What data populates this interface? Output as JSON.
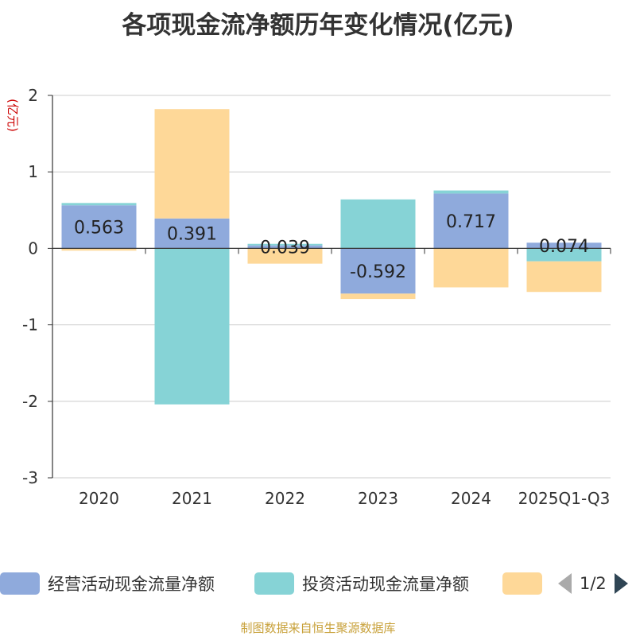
{
  "page": {
    "title": "各项现金流净额历年变化情况(亿元)",
    "footer": "制图数据来自恒生聚源数据库"
  },
  "colors": {
    "operating": "#8faadc",
    "investing": "#86d3d6",
    "financing": "#fed898",
    "grid": "#cccccc",
    "axis": "#333333",
    "unit": "#cc0000"
  },
  "legend": {
    "items": [
      "经营活动现金流量净额",
      "投资活动现金流量净额",
      ""
    ],
    "page": "1/2"
  },
  "chart_data": {
    "type": "bar",
    "stacked": true,
    "title": "各项现金流净额历年变化情况(亿元)",
    "ylabel": "(亿元)",
    "ylim": [
      -3,
      2
    ],
    "yticks": [
      2,
      1,
      0,
      -1,
      -2,
      -3
    ],
    "categories": [
      "2020",
      "2021",
      "2022",
      "2023",
      "2024",
      "2025Q1-Q3"
    ],
    "series": [
      {
        "name": "经营活动现金流量净额",
        "values": [
          0.563,
          0.391,
          0.039,
          -0.592,
          0.717,
          0.074
        ]
      },
      {
        "name": "投资活动现金流量净额",
        "values": [
          0.03,
          -2.04,
          0.02,
          0.64,
          0.04,
          -0.17
        ]
      },
      {
        "name": "",
        "values": [
          -0.03,
          1.43,
          -0.2,
          -0.07,
          -0.51,
          -0.4
        ]
      }
    ],
    "data_labels": [
      "0.563",
      "0.391",
      "0.039",
      "-0.592",
      "0.717",
      "0.074"
    ]
  }
}
